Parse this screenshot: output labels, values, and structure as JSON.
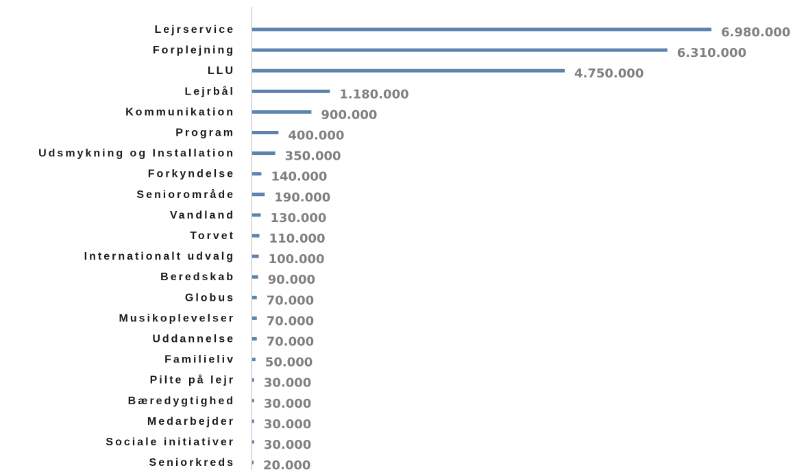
{
  "chart_data": {
    "type": "bar",
    "orientation": "horizontal",
    "categories": [
      "Lejrservice",
      "Forplejning",
      "LLU",
      "Lejrbål",
      "Kommunikation",
      "Program",
      "Udsmykning og Installation",
      "Forkyndelse",
      "Seniorområde",
      "Vandland",
      "Torvet",
      "Internationalt udvalg",
      "Beredskab",
      "Globus",
      "Musikoplevelser",
      "Uddannelse",
      "Familieliv",
      "Pilte på lejr",
      "Bæredygtighed",
      "Medarbejder",
      "Sociale initiativer",
      "Seniorkreds"
    ],
    "values": [
      6980000,
      6310000,
      4750000,
      1180000,
      900000,
      400000,
      350000,
      140000,
      190000,
      130000,
      110000,
      100000,
      90000,
      70000,
      70000,
      70000,
      50000,
      30000,
      30000,
      30000,
      30000,
      20000
    ],
    "value_labels": [
      "6.980.000",
      "6.310.000",
      "4.750.000",
      "1.180.000",
      "900.000",
      "400.000",
      "350.000",
      "140.000",
      "190.000",
      "130.000",
      "110.000",
      "100.000",
      "90.000",
      "70.000",
      "70.000",
      "70.000",
      "50.000",
      "30.000",
      "30.000",
      "30.000",
      "30.000",
      "20.000"
    ],
    "title": "",
    "xlabel": "",
    "ylabel": "",
    "xlim": [
      0,
      7000000
    ],
    "grid": false,
    "legend": "none",
    "colors": {
      "bar": "#5b83ad",
      "value_label": "#7f7f7f",
      "category_label": "#1a1a1a",
      "axis": "#cfcfcf"
    }
  }
}
